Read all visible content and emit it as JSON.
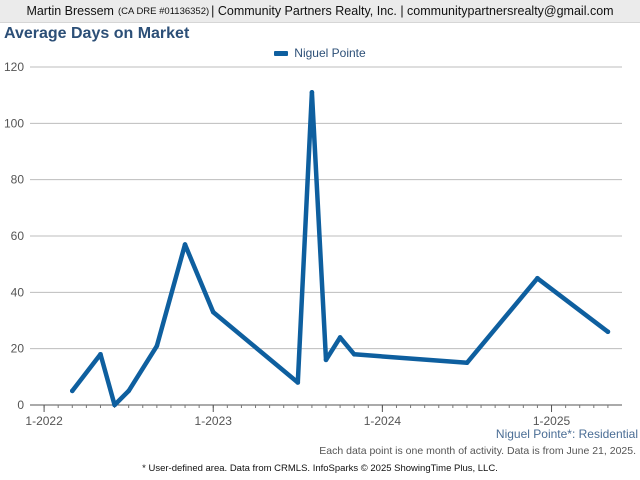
{
  "header": {
    "agent": "Martin Bressem",
    "license": "(CA DRE #01136352)",
    "rest": "| Community Partners Realty, Inc. | communitypartnersrealty@gmail.com"
  },
  "chart_data": {
    "type": "line",
    "title": "Average Days on Market",
    "xlabel": "",
    "ylabel": "",
    "ylim": [
      0,
      120
    ],
    "xlim": [
      "2021-12",
      "2025-06"
    ],
    "grid": true,
    "legend": "top-center",
    "y_ticks": [
      "0",
      "20",
      "40",
      "60",
      "80",
      "100",
      "120"
    ],
    "x_ticks": [
      {
        "label": "1-2022",
        "date": "2022-01"
      },
      {
        "label": "1-2023",
        "date": "2023-01"
      },
      {
        "label": "1-2024",
        "date": "2024-01"
      },
      {
        "label": "1-2025",
        "date": "2025-01"
      }
    ],
    "series": [
      {
        "name": "Niguel Pointe",
        "color": "#0e5f9f",
        "points": [
          {
            "x": "2022-03",
            "y": 5
          },
          {
            "x": "2022-05",
            "y": 18
          },
          {
            "x": "2022-06",
            "y": 0
          },
          {
            "x": "2022-07",
            "y": 5
          },
          {
            "x": "2022-09",
            "y": 21
          },
          {
            "x": "2022-11",
            "y": 57
          },
          {
            "x": "2023-01",
            "y": 33
          },
          {
            "x": "2023-07",
            "y": 8
          },
          {
            "x": "2023-08",
            "y": 111
          },
          {
            "x": "2023-09",
            "y": 16
          },
          {
            "x": "2023-10",
            "y": 24
          },
          {
            "x": "2023-11",
            "y": 18
          },
          {
            "x": "2024-07",
            "y": 15
          },
          {
            "x": "2024-12",
            "y": 45
          },
          {
            "x": "2025-05",
            "y": 26
          }
        ]
      }
    ]
  },
  "area_label": "Niguel Pointe*: Residential",
  "note": "Each data point is one month of activity. Data is from June 21, 2025.",
  "footer": "* User-defined area. Data from CRMLS. InfoSparks © 2025 ShowingTime Plus, LLC."
}
